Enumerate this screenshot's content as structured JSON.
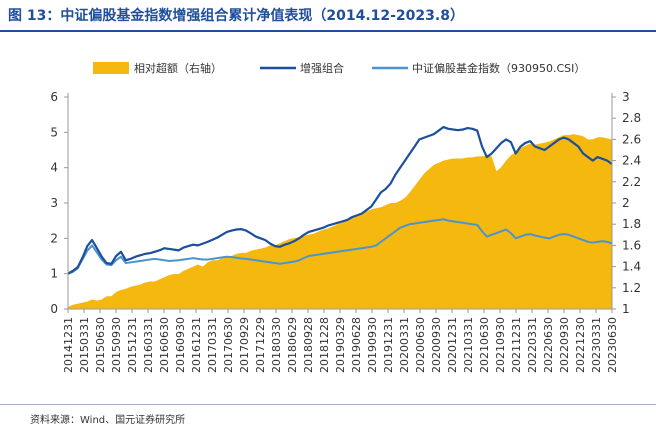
{
  "page": {
    "title": "图 13：中证偏股基金指数增强组合累计净值表现（2014.12-2023.8）",
    "source": "资料来源：Wind、国元证券研究所"
  },
  "colors": {
    "excess": "#f5b80f",
    "enhanced": "#1c4f9c",
    "index": "#4a95d0",
    "title": "#1f4e9b"
  },
  "chart_data": {
    "type": "line",
    "title": "",
    "xlabel": "",
    "ylabel": "",
    "x_ticks": [
      "20141231",
      "20150331",
      "20150630",
      "20150930",
      "20151231",
      "20160331",
      "20160630",
      "20160930",
      "20161231",
      "20170331",
      "20170630",
      "20170929",
      "20171229",
      "20180330",
      "20180629",
      "20180928",
      "20181228",
      "20190329",
      "20190628",
      "20190930",
      "20191231",
      "20200331",
      "20200630",
      "20200930",
      "20201231",
      "20210331",
      "20210630",
      "20210930",
      "20211231",
      "20220331",
      "20220630",
      "20220930",
      "20221230",
      "20230331",
      "20230630"
    ],
    "y_left": {
      "min": 0,
      "max": 6,
      "ticks": [
        "0",
        "1",
        "2",
        "3",
        "4",
        "5",
        "6"
      ]
    },
    "y_right": {
      "min": 1,
      "max": 3,
      "ticks": [
        "1",
        "1.2",
        "1.4",
        "1.6",
        "1.8",
        "2",
        "2.2",
        "2.4",
        "2.6",
        "2.8",
        "3"
      ]
    },
    "legend_position": "top",
    "series": [
      {
        "name": "相对超额（右轴）",
        "axis": "right",
        "kind": "area",
        "values": [
          1.02,
          1.04,
          1.05,
          1.06,
          1.07,
          1.09,
          1.08,
          1.09,
          1.12,
          1.12,
          1.16,
          1.18,
          1.19,
          1.21,
          1.22,
          1.23,
          1.25,
          1.26,
          1.26,
          1.28,
          1.3,
          1.32,
          1.33,
          1.33,
          1.36,
          1.38,
          1.4,
          1.42,
          1.4,
          1.44,
          1.46,
          1.46,
          1.48,
          1.5,
          1.5,
          1.52,
          1.53,
          1.53,
          1.55,
          1.56,
          1.57,
          1.58,
          1.6,
          1.6,
          1.62,
          1.64,
          1.66,
          1.67,
          1.68,
          1.69,
          1.7,
          1.71,
          1.73,
          1.75,
          1.76,
          1.78,
          1.8,
          1.82,
          1.84,
          1.86,
          1.88,
          1.9,
          1.92,
          1.94,
          1.95,
          1.96,
          1.98,
          2.0,
          2.0,
          2.02,
          2.05,
          2.1,
          2.16,
          2.22,
          2.28,
          2.32,
          2.36,
          2.38,
          2.4,
          2.41,
          2.42,
          2.42,
          2.42,
          2.43,
          2.43,
          2.44,
          2.44,
          2.45,
          2.44,
          2.3,
          2.34,
          2.4,
          2.45,
          2.48,
          2.52,
          2.54,
          2.56,
          2.55,
          2.56,
          2.57,
          2.58,
          2.6,
          2.62,
          2.64,
          2.64,
          2.65,
          2.64,
          2.63,
          2.6,
          2.6,
          2.62,
          2.62,
          2.61,
          2.6
        ]
      },
      {
        "name": "增强组合",
        "axis": "left",
        "kind": "line",
        "values": [
          1.0,
          1.08,
          1.18,
          1.45,
          1.78,
          1.95,
          1.72,
          1.48,
          1.3,
          1.28,
          1.5,
          1.62,
          1.38,
          1.42,
          1.48,
          1.52,
          1.56,
          1.58,
          1.62,
          1.66,
          1.72,
          1.7,
          1.68,
          1.66,
          1.74,
          1.78,
          1.82,
          1.8,
          1.85,
          1.9,
          1.96,
          2.02,
          2.1,
          2.18,
          2.22,
          2.25,
          2.26,
          2.22,
          2.14,
          2.05,
          2.0,
          1.95,
          1.85,
          1.78,
          1.76,
          1.82,
          1.86,
          1.92,
          2.0,
          2.1,
          2.18,
          2.22,
          2.26,
          2.3,
          2.36,
          2.4,
          2.44,
          2.48,
          2.52,
          2.6,
          2.65,
          2.7,
          2.8,
          2.9,
          3.1,
          3.3,
          3.4,
          3.55,
          3.8,
          4.0,
          4.2,
          4.4,
          4.6,
          4.8,
          4.85,
          4.9,
          4.95,
          5.05,
          5.15,
          5.1,
          5.08,
          5.06,
          5.08,
          5.12,
          5.1,
          5.05,
          4.6,
          4.3,
          4.4,
          4.55,
          4.7,
          4.8,
          4.72,
          4.4,
          4.6,
          4.7,
          4.75,
          4.6,
          4.55,
          4.5,
          4.6,
          4.7,
          4.8,
          4.85,
          4.8,
          4.7,
          4.6,
          4.4,
          4.3,
          4.2,
          4.3,
          4.25,
          4.2,
          4.1
        ]
      },
      {
        "name": "中证偏股基金指数（930950.CSI）",
        "axis": "left",
        "kind": "line",
        "values": [
          1.0,
          1.05,
          1.15,
          1.4,
          1.65,
          1.8,
          1.6,
          1.4,
          1.26,
          1.24,
          1.38,
          1.48,
          1.3,
          1.32,
          1.34,
          1.36,
          1.38,
          1.4,
          1.42,
          1.4,
          1.38,
          1.36,
          1.37,
          1.38,
          1.4,
          1.42,
          1.44,
          1.42,
          1.4,
          1.4,
          1.42,
          1.44,
          1.46,
          1.48,
          1.47,
          1.45,
          1.43,
          1.42,
          1.4,
          1.38,
          1.36,
          1.34,
          1.32,
          1.3,
          1.28,
          1.3,
          1.32,
          1.34,
          1.38,
          1.44,
          1.5,
          1.52,
          1.54,
          1.56,
          1.58,
          1.6,
          1.62,
          1.64,
          1.66,
          1.68,
          1.7,
          1.72,
          1.74,
          1.76,
          1.8,
          1.9,
          2.0,
          2.1,
          2.2,
          2.3,
          2.35,
          2.4,
          2.42,
          2.44,
          2.46,
          2.48,
          2.5,
          2.52,
          2.54,
          2.5,
          2.48,
          2.46,
          2.44,
          2.42,
          2.4,
          2.38,
          2.2,
          2.05,
          2.1,
          2.15,
          2.2,
          2.25,
          2.15,
          2.0,
          2.05,
          2.1,
          2.12,
          2.08,
          2.05,
          2.02,
          2.0,
          2.05,
          2.1,
          2.12,
          2.1,
          2.05,
          2.0,
          1.95,
          1.9,
          1.88,
          1.9,
          1.92,
          1.9,
          1.86
        ]
      }
    ]
  }
}
